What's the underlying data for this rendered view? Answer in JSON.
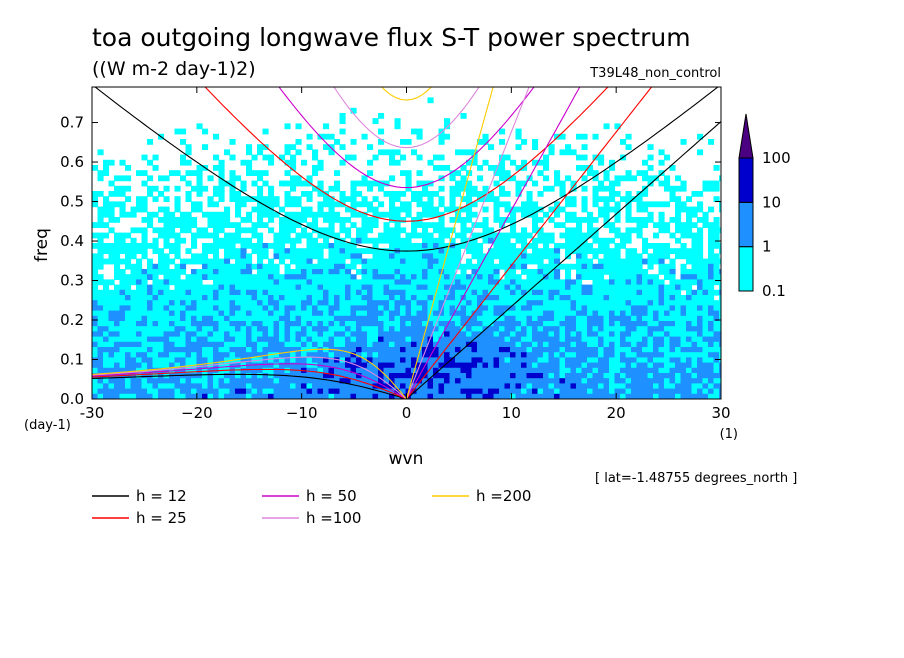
{
  "chart_data": {
    "type": "heatmap",
    "title": "toa outgoing longwave flux S-T power spectrum",
    "subtitle": "((W m-2 day-1)2)",
    "run_label": "T39L48_non_control",
    "xlabel": "wvn",
    "ylabel": "freq",
    "x_unit": "(1)",
    "y_unit": "(day-1)",
    "xlim": [
      -30,
      30
    ],
    "ylim": [
      0,
      0.79
    ],
    "x_ticks": [
      -30,
      -20,
      -10,
      0,
      10,
      20,
      30
    ],
    "x_tick_labels": [
      "-30",
      "−20",
      "−10",
      "0",
      "10",
      "20",
      "30"
    ],
    "y_ticks": [
      0.0,
      0.1,
      0.2,
      0.3,
      0.4,
      0.5,
      0.6,
      0.7
    ],
    "y_tick_labels": [
      "0.0",
      "0.1",
      "0.2",
      "0.3",
      "0.4",
      "0.5",
      "0.6",
      "0.7"
    ],
    "annotation": "[ lat=-1.48755 degrees_north ]",
    "colorbar": {
      "levels": [
        0.1,
        1,
        10,
        100
      ],
      "labels": [
        "0.1",
        "1",
        "10",
        "100"
      ],
      "colors": [
        "#00ffff",
        "#1e90ff",
        "#0000cd",
        "#4b0082"
      ]
    },
    "dispersion_curves": [
      {
        "name": "h = 12",
        "h": 12,
        "color": "#000000"
      },
      {
        "name": "h = 25",
        "h": 25,
        "color": "#ff0000"
      },
      {
        "name": "h = 50",
        "h": 50,
        "color": "#cc00cc"
      },
      {
        "name": "h =100",
        "h": 100,
        "color": "#dd88dd"
      },
      {
        "name": "h =200",
        "h": 200,
        "color": "#ffcc00"
      }
    ],
    "grid": false,
    "legend_position": "bottom-left"
  }
}
